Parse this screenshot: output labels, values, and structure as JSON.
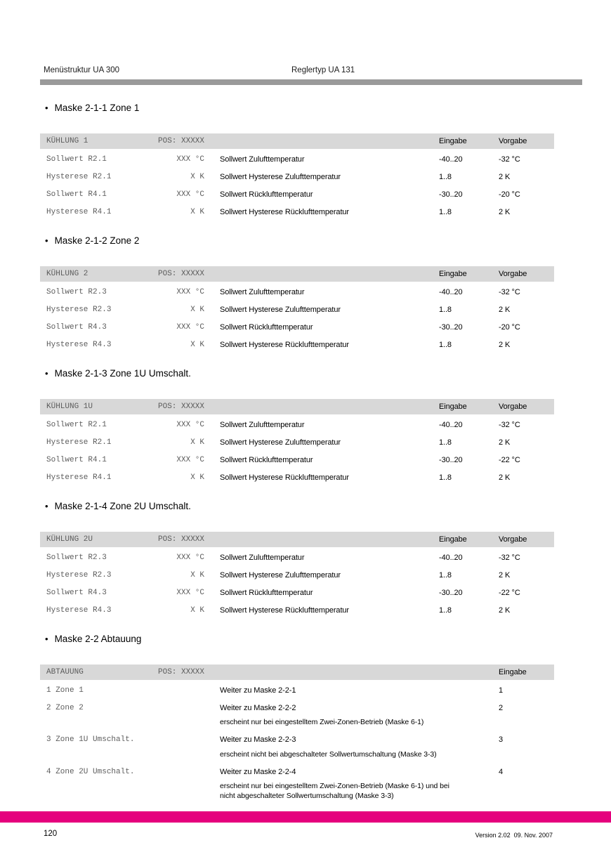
{
  "page": {
    "header": {
      "left": "Menüstruktur UA 300",
      "right": "Reglertyp UA 131"
    },
    "footer": {
      "page_number": "120",
      "version": "Version 2.02  09. Nov. 2007"
    },
    "bullet": "•",
    "colors": {
      "accent_magenta": "#e5007d",
      "divider_gray": "#9a9a9a",
      "table_header_gray": "#d8d8d8"
    }
  },
  "sections": [
    {
      "title": "Maske 2-1-1 Zone 1",
      "table": {
        "name": "KÜHLUNG 1",
        "pos": "POS: XXXXX",
        "col_eingabe": "Eingabe",
        "col_vorgabe": "Vorgabe",
        "rows": [
          {
            "label": "Sollwert R2.1",
            "value": "XXX °C",
            "desc": "Sollwert Zulufttemperatur",
            "eingabe": "-40..20",
            "vorgabe": "-32 °C"
          },
          {
            "label": "Hysterese R2.1",
            "value": "X K",
            "desc": "Sollwert Hysterese Zulufttemperatur",
            "eingabe": "1..8",
            "vorgabe": "2 K"
          },
          {
            "label": "Sollwert R4.1",
            "value": "XXX °C",
            "desc": "Sollwert Rücklufttemperatur",
            "eingabe": "-30..20",
            "vorgabe": "-20 °C"
          },
          {
            "label": "Hysterese R4.1",
            "value": "X K",
            "desc": "Sollwert Hysterese Rücklufttemperatur",
            "eingabe": "1..8",
            "vorgabe": "2 K"
          }
        ]
      }
    },
    {
      "title": "Maske 2-1-2 Zone 2",
      "table": {
        "name": "KÜHLUNG 2",
        "pos": "POS: XXXXX",
        "col_eingabe": "Eingabe",
        "col_vorgabe": "Vorgabe",
        "rows": [
          {
            "label": "Sollwert R2.3",
            "value": "XXX °C",
            "desc": "Sollwert Zulufttemperatur",
            "eingabe": "-40..20",
            "vorgabe": "-32 °C"
          },
          {
            "label": "Hysterese R2.3",
            "value": "X K",
            "desc": "Sollwert Hysterese Zulufttemperatur",
            "eingabe": "1..8",
            "vorgabe": "2 K"
          },
          {
            "label": "Sollwert R4.3",
            "value": "XXX °C",
            "desc": "Sollwert Rücklufttemperatur",
            "eingabe": "-30..20",
            "vorgabe": "-20 °C"
          },
          {
            "label": "Hysterese R4.3",
            "value": "X K",
            "desc": "Sollwert Hysterese Rücklufttemperatur",
            "eingabe": "1..8",
            "vorgabe": "2 K"
          }
        ]
      }
    },
    {
      "title": "Maske 2-1-3 Zone 1U Umschalt.",
      "table": {
        "name": "KÜHLUNG 1U",
        "pos": "POS: XXXXX",
        "col_eingabe": "Eingabe",
        "col_vorgabe": "Vorgabe",
        "rows": [
          {
            "label": "Sollwert R2.1",
            "value": "XXX °C",
            "desc": "Sollwert Zulufttemperatur",
            "eingabe": "-40..20",
            "vorgabe": "-32 °C"
          },
          {
            "label": "Hysterese R2.1",
            "value": "X K",
            "desc": "Sollwert Hysterese Zulufttemperatur",
            "eingabe": "1..8",
            "vorgabe": "2 K"
          },
          {
            "label": "Sollwert R4.1",
            "value": "XXX °C",
            "desc": "Sollwert Rücklufttemperatur",
            "eingabe": "-30..20",
            "vorgabe": "-22 °C"
          },
          {
            "label": "Hysterese R4.1",
            "value": "X K",
            "desc": "Sollwert Hysterese Rücklufttemperatur",
            "eingabe": "1..8",
            "vorgabe": "2 K"
          }
        ]
      }
    },
    {
      "title": "Maske 2-1-4 Zone 2U Umschalt.",
      "table": {
        "name": "KÜHLUNG 2U",
        "pos": "POS: XXXXX",
        "col_eingabe": "Eingabe",
        "col_vorgabe": "Vorgabe",
        "rows": [
          {
            "label": "Sollwert R2.3",
            "value": "XXX °C",
            "desc": "Sollwert Zulufttemperatur",
            "eingabe": "-40..20",
            "vorgabe": "-32 °C"
          },
          {
            "label": "Hysterese R2.3",
            "value": "X K",
            "desc": "Sollwert Hysterese Zulufttemperatur",
            "eingabe": "1..8",
            "vorgabe": "2 K"
          },
          {
            "label": "Sollwert R4.3",
            "value": "XXX °C",
            "desc": "Sollwert Rücklufttemperatur",
            "eingabe": "-30..20",
            "vorgabe": "-22 °C"
          },
          {
            "label": "Hysterese R4.3",
            "value": "X K",
            "desc": "Sollwert Hysterese Rücklufttemperatur",
            "eingabe": "1..8",
            "vorgabe": "2 K"
          }
        ]
      }
    },
    {
      "title": "Maske 2-2 Abtauung",
      "table": {
        "name": "ABTAUUNG",
        "pos": "POS: XXXXX",
        "col_eingabe": "Eingabe",
        "rows": [
          {
            "label": "1 Zone 1",
            "desc": "Weiter zu Maske 2-2-1",
            "eingabe": "1",
            "notes": []
          },
          {
            "label": "2 Zone 2",
            "desc": "Weiter zu Maske 2-2-2",
            "eingabe": "2",
            "notes": [
              "erscheint nur bei eingestelltem Zwei-Zonen-Betrieb (Maske 6-1)"
            ]
          },
          {
            "label": "3 Zone 1U Umschalt.",
            "desc": "Weiter zu Maske 2-2-3",
            "eingabe": "3",
            "notes": [
              "erscheint nicht bei abgeschalteter Sollwertumschaltung (Maske 3-3)"
            ]
          },
          {
            "label": "4 Zone 2U Umschalt.",
            "desc": "Weiter zu Maske 2-2-4",
            "eingabe": "4",
            "notes": [
              "erscheint nur bei eingestelltem Zwei-Zonen-Betrieb (Maske 6-1) und bei",
              "nicht abgeschalteter Sollwertumschaltung (Maske 3-3)"
            ]
          }
        ]
      }
    }
  ]
}
